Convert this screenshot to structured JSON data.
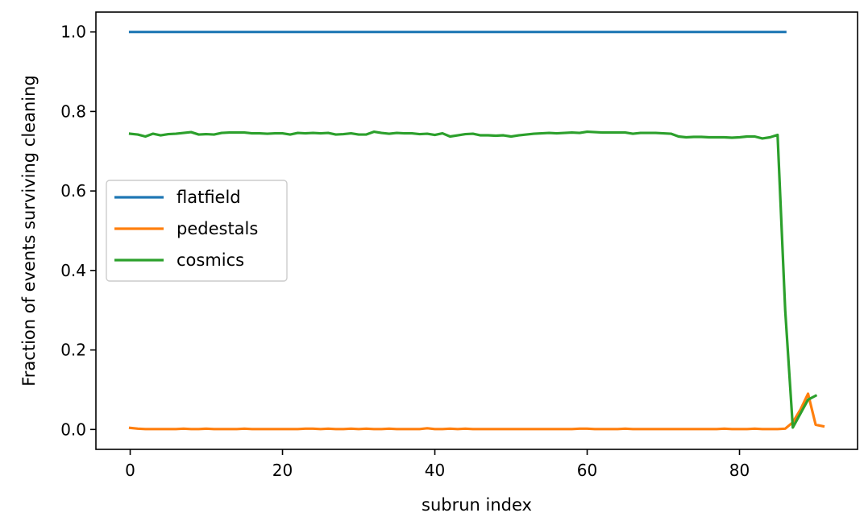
{
  "chart_data": {
    "type": "line",
    "title": "",
    "xlabel": "subrun index",
    "ylabel": "Fraction of events surviving cleaning",
    "xlim": [
      -4.5,
      95.5
    ],
    "ylim": [
      -0.05,
      1.05
    ],
    "x_ticks": [
      0,
      20,
      40,
      60,
      80
    ],
    "x_tick_labels": [
      "0",
      "20",
      "40",
      "60",
      "80"
    ],
    "y_ticks": [
      0.0,
      0.2,
      0.4,
      0.6,
      0.8,
      1.0
    ],
    "y_tick_labels": [
      "0.0",
      "0.2",
      "0.4",
      "0.6",
      "0.8",
      "1.0"
    ],
    "grid": false,
    "legend_position": "center-left",
    "series": [
      {
        "name": "flatfield",
        "color": "#1f77b4",
        "x": [
          0,
          86
        ],
        "y": [
          1.0,
          1.0
        ]
      },
      {
        "name": "pedestals",
        "color": "#ff7f0e",
        "x": [
          0,
          1,
          2,
          3,
          4,
          5,
          6,
          7,
          8,
          9,
          10,
          11,
          12,
          13,
          14,
          15,
          16,
          17,
          18,
          19,
          20,
          21,
          22,
          23,
          24,
          25,
          26,
          27,
          28,
          29,
          30,
          31,
          32,
          33,
          34,
          35,
          36,
          37,
          38,
          39,
          40,
          41,
          42,
          43,
          44,
          45,
          46,
          47,
          48,
          49,
          50,
          51,
          52,
          53,
          54,
          55,
          56,
          57,
          58,
          59,
          60,
          61,
          62,
          63,
          64,
          65,
          66,
          67,
          68,
          69,
          70,
          71,
          72,
          73,
          74,
          75,
          76,
          77,
          78,
          79,
          80,
          81,
          82,
          83,
          84,
          85,
          86,
          87,
          88,
          89,
          90,
          91
        ],
        "y": [
          0.004,
          0.002,
          0.001,
          0.001,
          0.001,
          0.001,
          0.001,
          0.002,
          0.001,
          0.001,
          0.002,
          0.001,
          0.001,
          0.001,
          0.001,
          0.002,
          0.001,
          0.001,
          0.001,
          0.001,
          0.001,
          0.001,
          0.001,
          0.002,
          0.002,
          0.001,
          0.002,
          0.001,
          0.001,
          0.002,
          0.001,
          0.002,
          0.001,
          0.001,
          0.002,
          0.001,
          0.001,
          0.001,
          0.001,
          0.003,
          0.001,
          0.001,
          0.002,
          0.001,
          0.002,
          0.001,
          0.001,
          0.001,
          0.001,
          0.001,
          0.001,
          0.001,
          0.001,
          0.001,
          0.001,
          0.001,
          0.001,
          0.001,
          0.001,
          0.002,
          0.002,
          0.001,
          0.001,
          0.001,
          0.001,
          0.002,
          0.001,
          0.001,
          0.001,
          0.001,
          0.001,
          0.001,
          0.001,
          0.001,
          0.001,
          0.001,
          0.001,
          0.001,
          0.002,
          0.001,
          0.001,
          0.001,
          0.002,
          0.001,
          0.001,
          0.001,
          0.002,
          0.018,
          0.05,
          0.09,
          0.012,
          0.008
        ]
      },
      {
        "name": "cosmics",
        "color": "#2ca02c",
        "x": [
          0,
          1,
          2,
          3,
          4,
          5,
          6,
          7,
          8,
          9,
          10,
          11,
          12,
          13,
          14,
          15,
          16,
          17,
          18,
          19,
          20,
          21,
          22,
          23,
          24,
          25,
          26,
          27,
          28,
          29,
          30,
          31,
          32,
          33,
          34,
          35,
          36,
          37,
          38,
          39,
          40,
          41,
          42,
          43,
          44,
          45,
          46,
          47,
          48,
          49,
          50,
          51,
          52,
          53,
          54,
          55,
          56,
          57,
          58,
          59,
          60,
          61,
          62,
          63,
          64,
          65,
          66,
          67,
          68,
          69,
          70,
          71,
          72,
          73,
          74,
          75,
          76,
          77,
          78,
          79,
          80,
          81,
          82,
          83,
          84,
          85,
          86,
          87,
          88,
          89,
          90
        ],
        "y": [
          0.744,
          0.742,
          0.737,
          0.744,
          0.74,
          0.743,
          0.744,
          0.746,
          0.748,
          0.742,
          0.743,
          0.742,
          0.746,
          0.747,
          0.747,
          0.747,
          0.745,
          0.745,
          0.744,
          0.745,
          0.745,
          0.742,
          0.746,
          0.745,
          0.746,
          0.745,
          0.746,
          0.742,
          0.743,
          0.745,
          0.742,
          0.742,
          0.749,
          0.746,
          0.744,
          0.746,
          0.745,
          0.745,
          0.743,
          0.744,
          0.741,
          0.745,
          0.737,
          0.74,
          0.743,
          0.744,
          0.74,
          0.74,
          0.739,
          0.74,
          0.737,
          0.74,
          0.742,
          0.744,
          0.745,
          0.746,
          0.745,
          0.746,
          0.747,
          0.746,
          0.749,
          0.748,
          0.747,
          0.747,
          0.747,
          0.747,
          0.744,
          0.746,
          0.746,
          0.746,
          0.745,
          0.744,
          0.737,
          0.735,
          0.736,
          0.736,
          0.735,
          0.735,
          0.735,
          0.734,
          0.735,
          0.737,
          0.737,
          0.732,
          0.735,
          0.741,
          0.3,
          0.005,
          0.04,
          0.075,
          0.085
        ]
      }
    ]
  }
}
